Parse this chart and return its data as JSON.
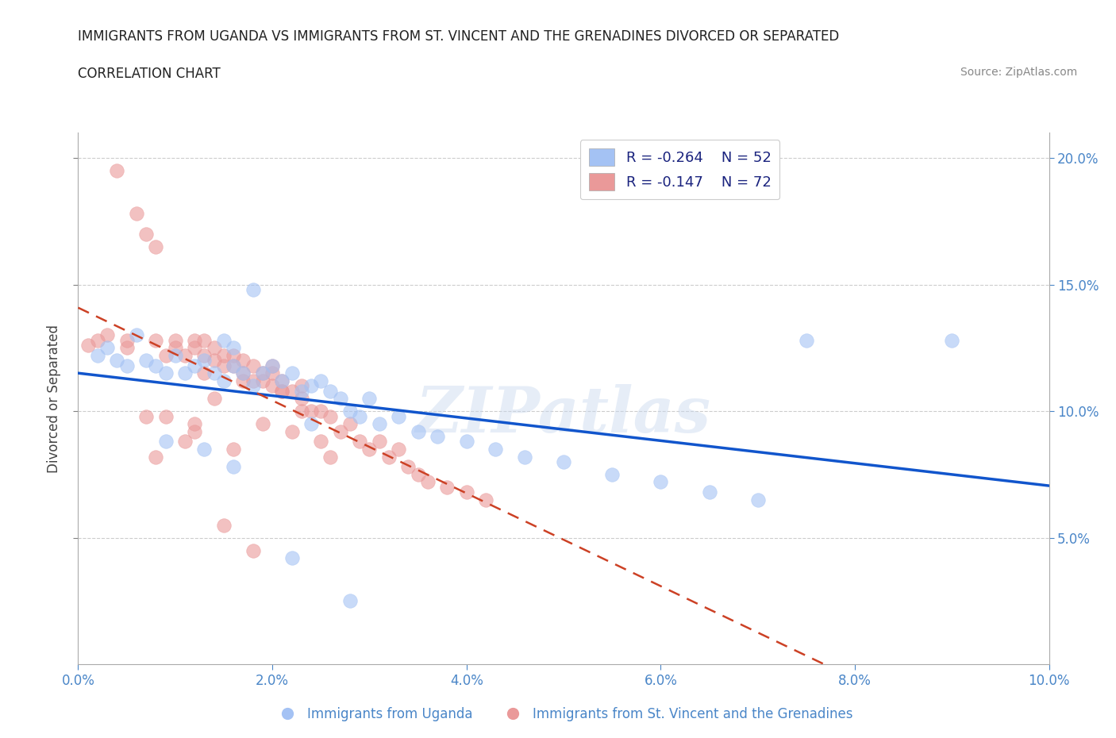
{
  "title_line1": "IMMIGRANTS FROM UGANDA VS IMMIGRANTS FROM ST. VINCENT AND THE GRENADINES DIVORCED OR SEPARATED",
  "title_line2": "CORRELATION CHART",
  "source_text": "Source: ZipAtlas.com",
  "ylabel": "Divorced or Separated",
  "xlim": [
    0.0,
    0.1
  ],
  "ylim": [
    0.0,
    0.21
  ],
  "xtick_labels": [
    "0.0%",
    "2.0%",
    "4.0%",
    "6.0%",
    "8.0%",
    "10.0%"
  ],
  "xtick_vals": [
    0.0,
    0.02,
    0.04,
    0.06,
    0.08,
    0.1
  ],
  "ytick_vals": [
    0.05,
    0.1,
    0.15,
    0.2
  ],
  "ytick_labels": [
    "5.0%",
    "10.0%",
    "15.0%",
    "20.0%"
  ],
  "blue_color": "#a4c2f4",
  "pink_color": "#ea9999",
  "blue_line_color": "#1155cc",
  "pink_line_color": "#cc4125",
  "legend_R1": "R = -0.264",
  "legend_N1": "N = 52",
  "legend_R2": "R = -0.147",
  "legend_N2": "N = 72",
  "watermark": "ZIPatlas",
  "legend_label1": "Immigrants from Uganda",
  "legend_label2": "Immigrants from St. Vincent and the Grenadines",
  "blue_x": [
    0.002,
    0.003,
    0.004,
    0.005,
    0.006,
    0.007,
    0.008,
    0.009,
    0.01,
    0.011,
    0.012,
    0.013,
    0.014,
    0.015,
    0.015,
    0.016,
    0.016,
    0.017,
    0.018,
    0.019,
    0.02,
    0.021,
    0.022,
    0.023,
    0.024,
    0.025,
    0.026,
    0.027,
    0.028,
    0.029,
    0.03,
    0.031,
    0.033,
    0.035,
    0.037,
    0.04,
    0.043,
    0.046,
    0.05,
    0.055,
    0.06,
    0.065,
    0.07,
    0.075,
    0.013,
    0.018,
    0.022,
    0.009,
    0.016,
    0.024,
    0.09,
    0.028
  ],
  "blue_y": [
    0.122,
    0.125,
    0.12,
    0.118,
    0.13,
    0.12,
    0.118,
    0.115,
    0.122,
    0.115,
    0.118,
    0.12,
    0.115,
    0.128,
    0.112,
    0.118,
    0.125,
    0.115,
    0.11,
    0.115,
    0.118,
    0.112,
    0.115,
    0.108,
    0.11,
    0.112,
    0.108,
    0.105,
    0.1,
    0.098,
    0.105,
    0.095,
    0.098,
    0.092,
    0.09,
    0.088,
    0.085,
    0.082,
    0.08,
    0.075,
    0.072,
    0.068,
    0.065,
    0.128,
    0.085,
    0.148,
    0.042,
    0.088,
    0.078,
    0.095,
    0.128,
    0.025
  ],
  "pink_x": [
    0.001,
    0.002,
    0.003,
    0.004,
    0.005,
    0.005,
    0.006,
    0.007,
    0.008,
    0.008,
    0.009,
    0.01,
    0.01,
    0.011,
    0.012,
    0.012,
    0.013,
    0.013,
    0.014,
    0.014,
    0.015,
    0.015,
    0.016,
    0.016,
    0.017,
    0.017,
    0.018,
    0.018,
    0.019,
    0.019,
    0.02,
    0.02,
    0.021,
    0.021,
    0.022,
    0.023,
    0.023,
    0.024,
    0.025,
    0.026,
    0.027,
    0.028,
    0.029,
    0.03,
    0.031,
    0.032,
    0.033,
    0.034,
    0.035,
    0.036,
    0.038,
    0.04,
    0.042,
    0.013,
    0.017,
    0.021,
    0.009,
    0.014,
    0.019,
    0.023,
    0.016,
    0.012,
    0.02,
    0.025,
    0.011,
    0.015,
    0.008,
    0.018,
    0.022,
    0.007,
    0.012,
    0.026
  ],
  "pink_y": [
    0.126,
    0.128,
    0.13,
    0.195,
    0.125,
    0.128,
    0.178,
    0.17,
    0.165,
    0.128,
    0.122,
    0.125,
    0.128,
    0.122,
    0.125,
    0.128,
    0.122,
    0.128,
    0.12,
    0.125,
    0.118,
    0.122,
    0.118,
    0.122,
    0.115,
    0.12,
    0.112,
    0.118,
    0.112,
    0.115,
    0.11,
    0.115,
    0.108,
    0.112,
    0.108,
    0.105,
    0.11,
    0.1,
    0.1,
    0.098,
    0.092,
    0.095,
    0.088,
    0.085,
    0.088,
    0.082,
    0.085,
    0.078,
    0.075,
    0.072,
    0.07,
    0.068,
    0.065,
    0.115,
    0.112,
    0.108,
    0.098,
    0.105,
    0.095,
    0.1,
    0.085,
    0.092,
    0.118,
    0.088,
    0.088,
    0.055,
    0.082,
    0.045,
    0.092,
    0.098,
    0.095,
    0.082
  ]
}
